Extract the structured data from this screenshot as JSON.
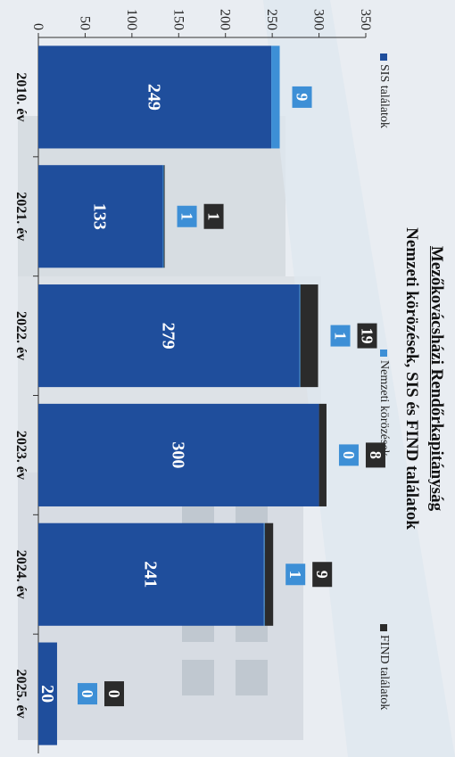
{
  "chart_data": {
    "type": "bar",
    "title": "Mezőkovácsházi Rendőrkapitányság",
    "subtitle": "Nemzeti körözések, SIS és FIND találatok",
    "categories": [
      "2010. év",
      "2021. év",
      "2022. év",
      "2023. év",
      "2024. év",
      "2025. év"
    ],
    "series": [
      {
        "name": "SIS találatok",
        "values": [
          249,
          133,
          279,
          300,
          241,
          20
        ],
        "color": "#1f4e9c"
      },
      {
        "name": "Nemzeti körözések",
        "values": [
          9,
          1,
          1,
          0,
          1,
          0
        ],
        "color": "#3d8fd6"
      },
      {
        "name": "FIND találatok",
        "values": [
          0,
          1,
          19,
          8,
          9,
          0
        ],
        "color": "#2b2b2b"
      }
    ],
    "ylim": [
      0,
      350
    ],
    "yticks": [
      0,
      50,
      100,
      150,
      200,
      250,
      300,
      350
    ],
    "stacked": true,
    "legend_position": "top",
    "orientation": "rotated 90 degrees clockwise"
  }
}
